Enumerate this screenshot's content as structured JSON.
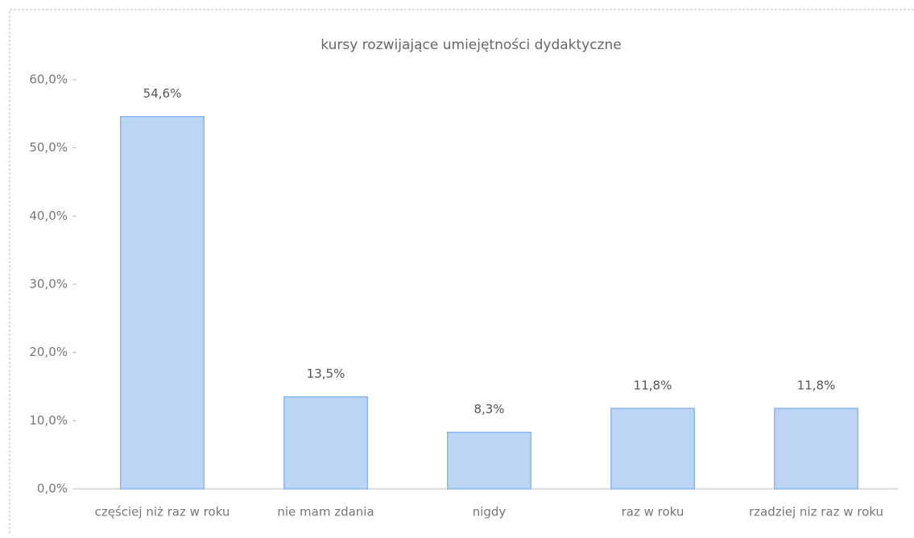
{
  "chart_data": {
    "type": "bar",
    "title": "kursy rozwijające umiejętności dydaktyczne",
    "categories": [
      "częściej niż raz w roku",
      "nie mam zdania",
      "nigdy",
      "raz w roku",
      "rzadziej niz raz w roku"
    ],
    "values": [
      54.6,
      13.5,
      8.3,
      11.8,
      11.8
    ],
    "value_labels": [
      "54,6%",
      "13,5%",
      "8,3%",
      "11,8%",
      "11,8%"
    ],
    "color": "#bcd5f4",
    "ylim": [
      0,
      60
    ],
    "yticks": [
      {
        "value": 0,
        "label": "0,0%"
      },
      {
        "value": 10,
        "label": "10,0%"
      },
      {
        "value": 20,
        "label": "20,0%"
      },
      {
        "value": 30,
        "label": "30,0%"
      },
      {
        "value": 40,
        "label": "40,0%"
      },
      {
        "value": 50,
        "label": "50,0%"
      },
      {
        "value": 60,
        "label": "60,0%"
      }
    ],
    "grid": false
  }
}
